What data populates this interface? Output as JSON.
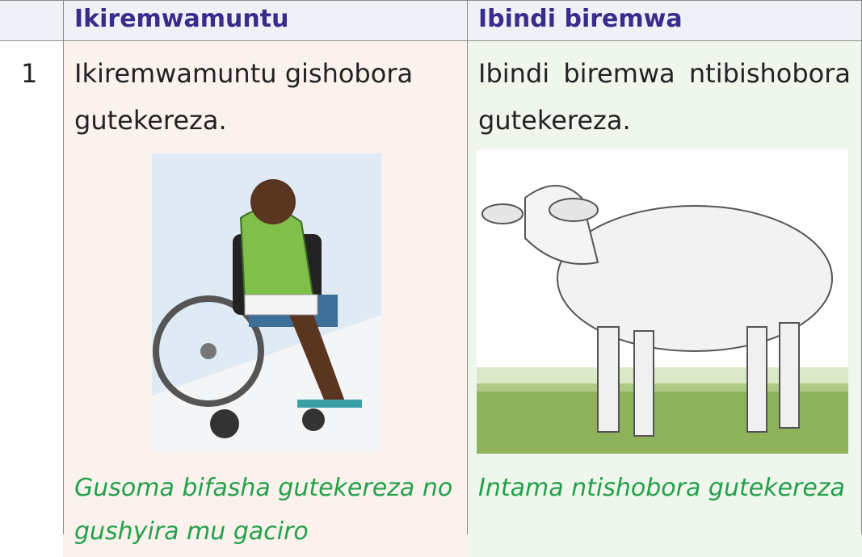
{
  "table": {
    "header": [
      "Ikiremwamuntu",
      "Ibindi biremwa"
    ],
    "rows": [
      {
        "number": 1,
        "human_text": "Ikiremwamuntu gishobora gutekereza.",
        "other_text": "Ibindi biremwa ntibishobora gutekereza.",
        "human_caption": "Gusoma bifasha gutekereza no gushyira mu gaciro",
        "other_caption": "Intama ntishobora gutekereza"
      }
    ]
  }
}
